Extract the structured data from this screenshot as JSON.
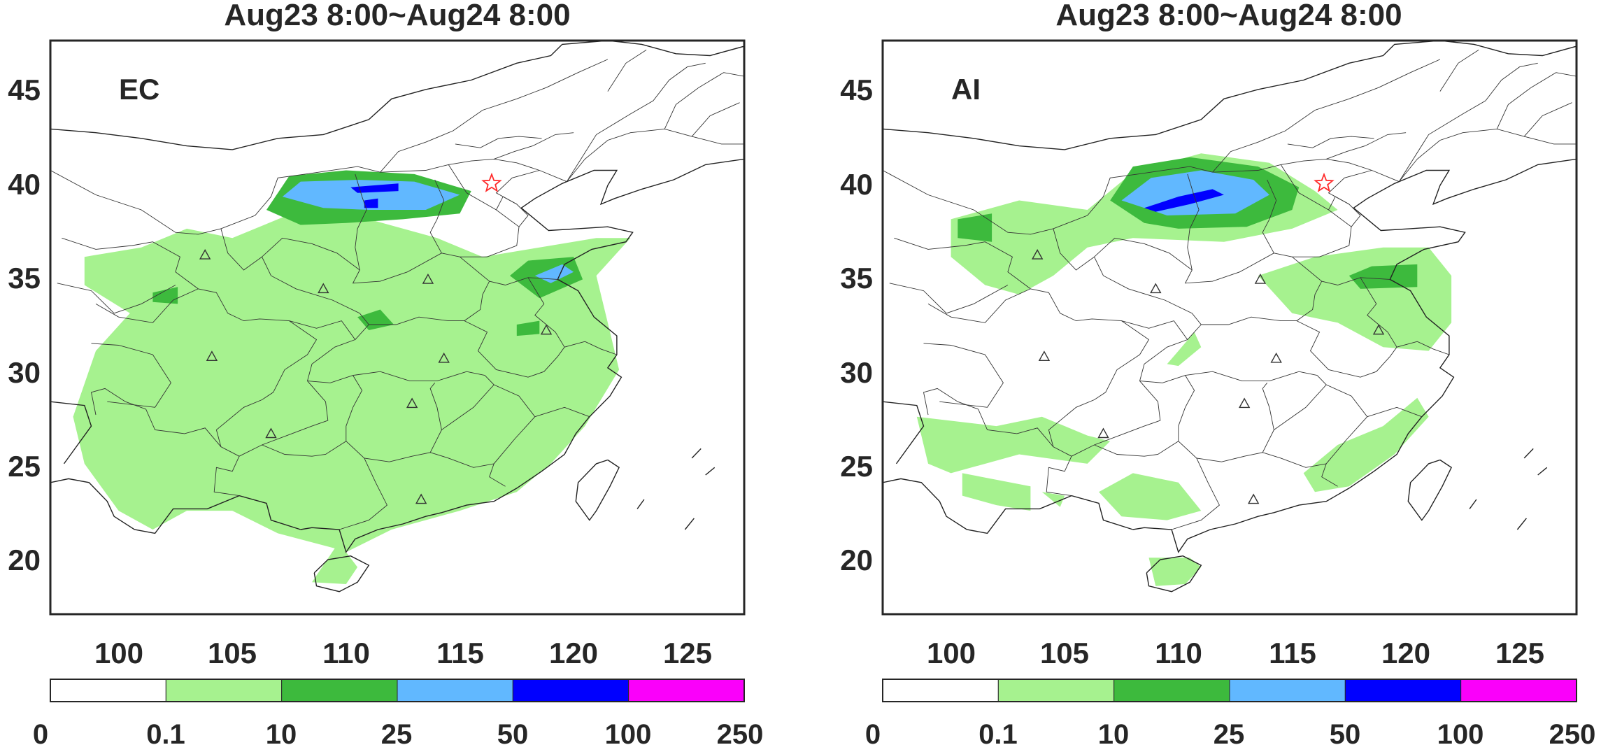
{
  "panels": [
    {
      "id": "ec",
      "title": "Aug23 8:00~Aug24 8:00",
      "label": "EC",
      "x_ticks": [
        "100",
        "105",
        "110",
        "115",
        "120",
        "125"
      ],
      "y_ticks": [
        "45",
        "40",
        "35",
        "30",
        "25",
        "20"
      ],
      "lon_range": [
        97,
        127.5
      ],
      "lat_range": [
        17,
        47.5
      ],
      "rain_areas": [
        {
          "level": "0.1-10",
          "lonlat": [
            [
              98.5,
              36
            ],
            [
              101,
              36.5
            ],
            [
              103,
              37.5
            ],
            [
              105,
              37
            ],
            [
              108,
              38.5
            ],
            [
              111,
              38
            ],
            [
              114,
              37
            ],
            [
              116,
              36
            ],
            [
              118.5,
              36.5
            ],
            [
              121,
              37
            ],
            [
              122.5,
              37
            ],
            [
              121,
              35
            ],
            [
              121.5,
              32.5
            ],
            [
              122,
              30
            ],
            [
              120.5,
              27
            ],
            [
              119,
              25
            ],
            [
              117.5,
              23.5
            ],
            [
              115,
              22.5
            ],
            [
              112,
              21.5
            ],
            [
              110,
              20.3
            ],
            [
              110.5,
              19.5
            ],
            [
              110,
              18.6
            ],
            [
              108.5,
              18.7
            ],
            [
              109.5,
              20.5
            ],
            [
              107,
              21.3
            ],
            [
              105,
              22.5
            ],
            [
              103,
              22.5
            ],
            [
              101.5,
              21.5
            ],
            [
              100,
              22.5
            ],
            [
              98.5,
              25
            ],
            [
              98,
              27.5
            ],
            [
              99,
              31
            ],
            [
              100.5,
              33
            ],
            [
              98.5,
              34.5
            ]
          ]
        },
        {
          "level": "10-25",
          "lonlat": [
            [
              106.5,
              38.5
            ],
            [
              107.5,
              40.3
            ],
            [
              110,
              40.6
            ],
            [
              113,
              40.4
            ],
            [
              115.5,
              39.5
            ],
            [
              115,
              38.3
            ],
            [
              112.5,
              38
            ],
            [
              110,
              37.8
            ],
            [
              108,
              37.7
            ]
          ]
        },
        {
          "level": "10-25",
          "lonlat": [
            [
              117.2,
              35
            ],
            [
              118,
              35.8
            ],
            [
              120,
              36
            ],
            [
              120.4,
              34.8
            ],
            [
              118.5,
              33.8
            ]
          ]
        },
        {
          "level": "10-25",
          "lonlat": [
            [
              110.5,
              32.8
            ],
            [
              111.5,
              33.2
            ],
            [
              112.1,
              32.4
            ],
            [
              111,
              32.1
            ]
          ]
        },
        {
          "level": "10-25",
          "lonlat": [
            [
              117.5,
              32.4
            ],
            [
              118.5,
              32.6
            ],
            [
              118.5,
              31.9
            ],
            [
              117.5,
              31.8
            ]
          ]
        },
        {
          "level": "10-25",
          "lonlat": [
            [
              101.5,
              34.1
            ],
            [
              102.6,
              34.4
            ],
            [
              102.6,
              33.5
            ],
            [
              101.5,
              33.6
            ]
          ]
        },
        {
          "level": "25-50",
          "lonlat": [
            [
              107.2,
              39.2
            ],
            [
              108,
              40
            ],
            [
              110.5,
              40.1
            ],
            [
              113,
              40
            ],
            [
              115,
              39.3
            ],
            [
              113.5,
              38.5
            ],
            [
              111,
              38.5
            ],
            [
              109,
              38.6
            ]
          ]
        },
        {
          "level": "25-50",
          "lonlat": [
            [
              118.3,
              35
            ],
            [
              119.5,
              35.6
            ],
            [
              120,
              35.2
            ],
            [
              119,
              34.6
            ]
          ]
        },
        {
          "level": "50-100",
          "lonlat": [
            [
              110.2,
              39.7
            ],
            [
              112.3,
              39.9
            ],
            [
              112.3,
              39.5
            ],
            [
              110.5,
              39.4
            ]
          ]
        },
        {
          "level": "50-100",
          "lonlat": [
            [
              110.8,
              39
            ],
            [
              111.4,
              39.1
            ],
            [
              111.4,
              38.6
            ],
            [
              110.8,
              38.6
            ]
          ]
        }
      ]
    },
    {
      "id": "ai",
      "title": "Aug23 8:00~Aug24 8:00",
      "label": "AI",
      "x_ticks": [
        "100",
        "105",
        "110",
        "115",
        "120",
        "125"
      ],
      "y_ticks": [
        "45",
        "40",
        "35",
        "30",
        "25",
        "20"
      ],
      "lon_range": [
        97,
        127.5
      ],
      "lat_range": [
        17,
        47.5
      ],
      "rain_areas": [
        {
          "level": "0.1-10",
          "lonlat": [
            [
              100,
              38
            ],
            [
              103,
              39
            ],
            [
              106,
              38.5
            ],
            [
              108,
              40.5
            ],
            [
              111,
              41.5
            ],
            [
              114,
              41
            ],
            [
              116,
              39.5
            ],
            [
              117,
              38.5
            ],
            [
              115,
              37.5
            ],
            [
              112,
              36.8
            ],
            [
              108,
              37
            ],
            [
              106,
              36.5
            ],
            [
              104.5,
              35
            ],
            [
              103,
              34
            ],
            [
              101.5,
              34.5
            ],
            [
              100,
              36
            ]
          ]
        },
        {
          "level": "0.1-10",
          "lonlat": [
            [
              110,
              30.2
            ],
            [
              111,
              31.2
            ],
            [
              110.7,
              32
            ],
            [
              110,
              31
            ],
            [
              109.5,
              30.3
            ]
          ]
        },
        {
          "level": "0.1-10",
          "lonlat": [
            [
              113.5,
              35
            ],
            [
              116,
              36
            ],
            [
              119,
              36.5
            ],
            [
              121,
              36.5
            ],
            [
              122,
              35
            ],
            [
              122,
              32.5
            ],
            [
              121,
              31
            ],
            [
              119,
              31.2
            ],
            [
              117,
              32.5
            ],
            [
              115,
              33
            ]
          ]
        },
        {
          "level": "0.1-10",
          "lonlat": [
            [
              98.5,
              27.5
            ],
            [
              102,
              27
            ],
            [
              104,
              27.5
            ],
            [
              106,
              26.5
            ],
            [
              107,
              26.2
            ],
            [
              106,
              25
            ],
            [
              103,
              25.5
            ],
            [
              100,
              24.5
            ],
            [
              99,
              25
            ]
          ]
        },
        {
          "level": "0.1-10",
          "lonlat": [
            [
              100.5,
              24.5
            ],
            [
              103.5,
              23.8
            ],
            [
              103.5,
              22.5
            ],
            [
              102,
              22.8
            ],
            [
              100.5,
              23.3
            ]
          ]
        },
        {
          "level": "0.1-10",
          "lonlat": [
            [
              104,
              23.5
            ],
            [
              104.8,
              22.7
            ],
            [
              105,
              23.3
            ]
          ]
        },
        {
          "level": "0.1-10",
          "lonlat": [
            [
              106.5,
              23.5
            ],
            [
              108,
              24.5
            ],
            [
              110,
              24
            ],
            [
              111,
              22.5
            ],
            [
              109.5,
              22
            ],
            [
              107.5,
              22.2
            ]
          ]
        },
        {
          "level": "0.1-10",
          "lonlat": [
            [
              115.5,
              24.5
            ],
            [
              117,
              26
            ],
            [
              119,
              27
            ],
            [
              120.5,
              28.5
            ],
            [
              121,
              27.5
            ],
            [
              119.5,
              25.5
            ],
            [
              117.5,
              23.8
            ],
            [
              116,
              23.5
            ]
          ]
        },
        {
          "level": "0.1-10",
          "lonlat": [
            [
              108.7,
              20
            ],
            [
              110.5,
              20
            ],
            [
              111,
              19.5
            ],
            [
              110.3,
              18.6
            ],
            [
              109,
              18.5
            ]
          ]
        },
        {
          "level": "10-25",
          "lonlat": [
            [
              107,
              39
            ],
            [
              108,
              40.8
            ],
            [
              110.5,
              41.3
            ],
            [
              113.5,
              40.8
            ],
            [
              115.3,
              39.7
            ],
            [
              115,
              38.5
            ],
            [
              113,
              37.6
            ],
            [
              110,
              37.5
            ],
            [
              108.5,
              37.8
            ]
          ]
        },
        {
          "level": "10-25",
          "lonlat": [
            [
              117.5,
              35
            ],
            [
              118.5,
              35.5
            ],
            [
              120.5,
              35.6
            ],
            [
              120.5,
              34.4
            ],
            [
              118,
              34.3
            ]
          ]
        },
        {
          "level": "10-25",
          "lonlat": [
            [
              100.3,
              38
            ],
            [
              101.8,
              38.3
            ],
            [
              101.8,
              36.8
            ],
            [
              100.3,
              37
            ]
          ]
        },
        {
          "level": "25-50",
          "lonlat": [
            [
              107.5,
              39
            ],
            [
              108.8,
              40.2
            ],
            [
              111,
              40.6
            ],
            [
              113.3,
              40.1
            ],
            [
              114,
              39.3
            ],
            [
              112.5,
              38.3
            ],
            [
              109.5,
              38.2
            ]
          ]
        },
        {
          "level": "50-100",
          "lonlat": [
            [
              108.5,
              38.6
            ],
            [
              110,
              39.2
            ],
            [
              111.5,
              39.6
            ],
            [
              112,
              39.3
            ],
            [
              110.5,
              38.8
            ],
            [
              109,
              38.4
            ]
          ]
        }
      ]
    }
  ],
  "colorbar": {
    "tick_labels": [
      "0",
      "0.1",
      "10",
      "25",
      "50",
      "100",
      "250"
    ],
    "levels": [
      "0-0.1",
      "0.1-10",
      "10-25",
      "25-50",
      "50-100",
      "100-250"
    ],
    "colors": [
      "#ffffff",
      "#a6f28f",
      "#3dba3d",
      "#61b8ff",
      "#0000ff",
      "#fa00fa"
    ]
  },
  "markers": {
    "star_lonlat": [
      116.4,
      39.9
    ],
    "triangles_lonlat": [
      [
        103.8,
        36.1
      ],
      [
        109,
        34.3
      ],
      [
        113.6,
        34.8
      ],
      [
        104.1,
        30.7
      ],
      [
        114.3,
        30.6
      ],
      [
        118.8,
        32.1
      ],
      [
        112.9,
        28.2
      ],
      [
        106.7,
        26.6
      ],
      [
        113.3,
        23.1
      ]
    ],
    "star_color": "#ff2a2a"
  }
}
